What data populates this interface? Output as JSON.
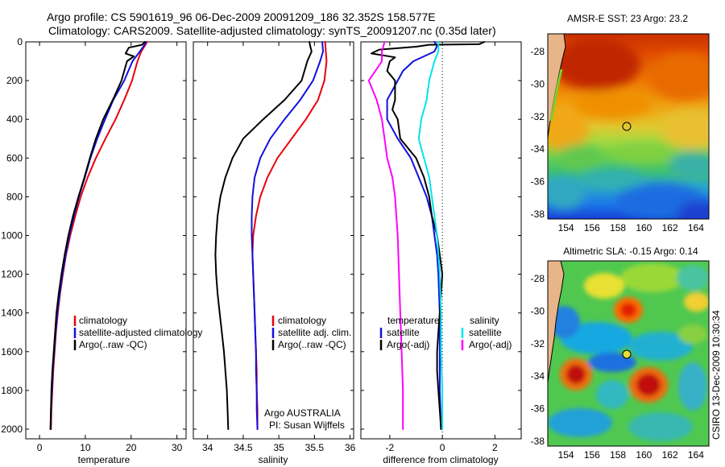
{
  "figure": {
    "title_line1": "Argo profile: CS 5901619_96 06-Dec-2009 20091209_186 32.352S 158.577E",
    "title_line2": "Climatology: CARS2009. Satellite-adjusted climatology: synTS_20091207.nc (0.35d later)",
    "stamp": "CSIRO 13-Dec-2009 10:30:34"
  },
  "colors": {
    "climatology": "#e8000b",
    "satellite": "#1010e0",
    "argo": "#000000",
    "cyan": "#00e5ee",
    "magenta": "#ff00ff",
    "land": "#e8b48a",
    "coast": "#000000",
    "coast_green": "#7fcf2a"
  },
  "panels_text": {
    "credit_line1": "Argo AUSTRALIA",
    "credit_line2": "PI: Susan Wijffels",
    "legend_temp_header": "temperature",
    "legend_sal_header": "salinity"
  },
  "chart_data": [
    {
      "type": "line",
      "name": "temperature-panel",
      "xlabel": "temperature",
      "ylabel": "",
      "xlim": [
        -3,
        32
      ],
      "ylim": [
        2050,
        0
      ],
      "y_reversed": true,
      "xticks": [
        0,
        10,
        20,
        30
      ],
      "yticks": [
        0,
        200,
        400,
        600,
        800,
        1000,
        1200,
        1400,
        1600,
        1800,
        2000
      ],
      "legend": [
        "climatology",
        "satellite-adjusted climatology",
        "Argo(..raw -QC)"
      ],
      "series": [
        {
          "name": "climatology",
          "color_key": "climatology",
          "points": [
            [
              23.5,
              0
            ],
            [
              23.0,
              20
            ],
            [
              22.2,
              50
            ],
            [
              21.4,
              100
            ],
            [
              20.2,
              200
            ],
            [
              18.5,
              300
            ],
            [
              16.6,
              400
            ],
            [
              14.4,
              500
            ],
            [
              12.3,
              600
            ],
            [
              10.5,
              700
            ],
            [
              9.0,
              800
            ],
            [
              7.8,
              900
            ],
            [
              6.7,
              1000
            ],
            [
              5.8,
              1100
            ],
            [
              5.1,
              1200
            ],
            [
              4.5,
              1300
            ],
            [
              4.0,
              1400
            ],
            [
              3.6,
              1500
            ],
            [
              3.3,
              1600
            ],
            [
              3.0,
              1700
            ],
            [
              2.8,
              1800
            ],
            [
              2.6,
              1900
            ],
            [
              2.5,
              2000
            ]
          ]
        },
        {
          "name": "satellite-adjusted climatology",
          "color_key": "satellite",
          "points": [
            [
              23.2,
              0
            ],
            [
              22.8,
              20
            ],
            [
              21.9,
              50
            ],
            [
              20.3,
              100
            ],
            [
              18.5,
              200
            ],
            [
              16.1,
              300
            ],
            [
              14.3,
              400
            ],
            [
              12.6,
              500
            ],
            [
              11.1,
              600
            ],
            [
              9.9,
              700
            ],
            [
              8.6,
              800
            ],
            [
              7.5,
              900
            ],
            [
              6.5,
              1000
            ],
            [
              5.7,
              1100
            ],
            [
              5.0,
              1200
            ],
            [
              4.4,
              1300
            ],
            [
              3.9,
              1400
            ],
            [
              3.5,
              1500
            ],
            [
              3.2,
              1600
            ],
            [
              2.9,
              1700
            ],
            [
              2.7,
              1800
            ],
            [
              2.5,
              1900
            ],
            [
              2.4,
              2000
            ]
          ]
        },
        {
          "name": "Argo(..raw -QC)",
          "color_key": "argo",
          "points": [
            [
              23.0,
              0
            ],
            [
              22.4,
              15
            ],
            [
              19.5,
              30
            ],
            [
              18.8,
              60
            ],
            [
              20.6,
              75
            ],
            [
              19.1,
              100
            ],
            [
              18.5,
              150
            ],
            [
              17.9,
              200
            ],
            [
              16.0,
              300
            ],
            [
              13.9,
              400
            ],
            [
              12.3,
              500
            ],
            [
              11.0,
              600
            ],
            [
              9.8,
              700
            ],
            [
              8.5,
              800
            ],
            [
              7.3,
              900
            ],
            [
              6.3,
              1000
            ],
            [
              5.5,
              1100
            ],
            [
              4.8,
              1200
            ],
            [
              4.2,
              1300
            ],
            [
              3.7,
              1400
            ],
            [
              3.4,
              1500
            ],
            [
              3.1,
              1600
            ],
            [
              2.8,
              1700
            ],
            [
              2.6,
              1800
            ],
            [
              2.5,
              1900
            ],
            [
              2.4,
              2000
            ]
          ]
        }
      ]
    },
    {
      "type": "line",
      "name": "salinity-panel",
      "xlabel": "salinity",
      "ylabel": "",
      "xlim": [
        33.8,
        36.05
      ],
      "ylim": [
        2050,
        0
      ],
      "y_reversed": true,
      "xticks": [
        34,
        34.5,
        35,
        35.5,
        36
      ],
      "legend": [
        "climatology",
        "satellite adj. clim.",
        "Argo(..raw -QC)"
      ],
      "series": [
        {
          "name": "climatology",
          "color_key": "climatology",
          "points": [
            [
              35.65,
              0
            ],
            [
              35.66,
              50
            ],
            [
              35.67,
              100
            ],
            [
              35.64,
              200
            ],
            [
              35.55,
              300
            ],
            [
              35.38,
              400
            ],
            [
              35.18,
              500
            ],
            [
              34.98,
              600
            ],
            [
              34.84,
              700
            ],
            [
              34.74,
              800
            ],
            [
              34.68,
              900
            ],
            [
              34.64,
              1000
            ],
            [
              34.63,
              1100
            ],
            [
              34.64,
              1200
            ],
            [
              34.65,
              1300
            ],
            [
              34.66,
              1400
            ],
            [
              34.67,
              1500
            ],
            [
              34.68,
              1600
            ],
            [
              34.69,
              1700
            ],
            [
              34.69,
              1800
            ],
            [
              34.7,
              1900
            ],
            [
              34.7,
              2000
            ]
          ]
        },
        {
          "name": "satellite adj. clim.",
          "color_key": "satellite",
          "points": [
            [
              35.61,
              0
            ],
            [
              35.62,
              50
            ],
            [
              35.58,
              100
            ],
            [
              35.48,
              200
            ],
            [
              35.3,
              300
            ],
            [
              35.08,
              400
            ],
            [
              34.88,
              500
            ],
            [
              34.74,
              600
            ],
            [
              34.66,
              700
            ],
            [
              34.63,
              800
            ],
            [
              34.62,
              900
            ],
            [
              34.62,
              1000
            ],
            [
              34.63,
              1100
            ],
            [
              34.64,
              1200
            ],
            [
              34.65,
              1300
            ],
            [
              34.66,
              1400
            ],
            [
              34.67,
              1500
            ],
            [
              34.68,
              1600
            ],
            [
              34.68,
              1700
            ],
            [
              34.69,
              1800
            ],
            [
              34.69,
              1900
            ],
            [
              34.7,
              2000
            ]
          ]
        },
        {
          "name": "Argo(..raw -QC)",
          "color_key": "argo",
          "points": [
            [
              35.43,
              0
            ],
            [
              35.44,
              20
            ],
            [
              35.46,
              50
            ],
            [
              35.4,
              100
            ],
            [
              35.32,
              200
            ],
            [
              35.08,
              300
            ],
            [
              34.78,
              400
            ],
            [
              34.5,
              500
            ],
            [
              34.35,
              600
            ],
            [
              34.25,
              700
            ],
            [
              34.18,
              800
            ],
            [
              34.14,
              900
            ],
            [
              34.12,
              1000
            ],
            [
              34.11,
              1100
            ],
            [
              34.12,
              1200
            ],
            [
              34.14,
              1300
            ],
            [
              34.17,
              1400
            ],
            [
              34.2,
              1500
            ],
            [
              34.23,
              1600
            ],
            [
              34.25,
              1700
            ],
            [
              34.27,
              1800
            ],
            [
              34.28,
              1900
            ],
            [
              34.29,
              2000
            ]
          ]
        }
      ]
    },
    {
      "type": "line",
      "name": "difference-panel",
      "xlabel": "difference from climatology",
      "ylabel": "",
      "xlim": [
        -3.1,
        3.0
      ],
      "ylim": [
        2050,
        0
      ],
      "y_reversed": true,
      "xticks": [
        -2,
        0,
        2
      ],
      "zero_line": 0,
      "legend_temperature": [
        "satellite",
        "Argo(-adj)"
      ],
      "legend_salinity": [
        "satellite",
        "Argo(-adj)"
      ],
      "series": [
        {
          "name": "temperature satellite",
          "color_key": "satellite",
          "points": [
            [
              -0.3,
              0
            ],
            [
              -0.2,
              20
            ],
            [
              -0.3,
              50
            ],
            [
              -1.1,
              100
            ],
            [
              -1.5,
              150
            ],
            [
              -1.7,
              200
            ],
            [
              -2.1,
              300
            ],
            [
              -2.1,
              400
            ],
            [
              -1.7,
              500
            ],
            [
              -1.2,
              600
            ],
            [
              -0.9,
              700
            ],
            [
              -0.6,
              800
            ],
            [
              -0.4,
              900
            ],
            [
              -0.3,
              1000
            ],
            [
              -0.2,
              1100
            ],
            [
              -0.15,
              1200
            ],
            [
              -0.1,
              1400
            ],
            [
              -0.1,
              1600
            ],
            [
              -0.1,
              1800
            ],
            [
              -0.05,
              2000
            ]
          ]
        },
        {
          "name": "temperature Argo(-adj)",
          "color_key": "argo",
          "points": [
            [
              1.6,
              0
            ],
            [
              1.4,
              12
            ],
            [
              -0.5,
              15
            ],
            [
              -1.0,
              25
            ],
            [
              -2.4,
              40
            ],
            [
              -2.7,
              60
            ],
            [
              -1.8,
              80
            ],
            [
              -2.0,
              100
            ],
            [
              -2.1,
              150
            ],
            [
              -1.8,
              200
            ],
            [
              -1.8,
              300
            ],
            [
              -1.9,
              350
            ],
            [
              -1.7,
              400
            ],
            [
              -1.6,
              500
            ],
            [
              -1.0,
              600
            ],
            [
              -0.7,
              700
            ],
            [
              -0.5,
              800
            ],
            [
              -0.4,
              900
            ],
            [
              -0.2,
              1000
            ],
            [
              -0.1,
              1100
            ],
            [
              0.0,
              1200
            ],
            [
              -0.05,
              1300
            ],
            [
              -0.1,
              1400
            ],
            [
              -0.15,
              1500
            ],
            [
              -0.2,
              1600
            ],
            [
              -0.2,
              1700
            ],
            [
              -0.15,
              1800
            ],
            [
              -0.1,
              1900
            ],
            [
              -0.05,
              2000
            ]
          ]
        },
        {
          "name": "salinity satellite",
          "color_key": "cyan",
          "points": [
            [
              -0.15,
              0
            ],
            [
              -0.15,
              50
            ],
            [
              -0.3,
              100
            ],
            [
              -0.5,
              200
            ],
            [
              -0.6,
              300
            ],
            [
              -0.8,
              400
            ],
            [
              -0.9,
              500
            ],
            [
              -0.7,
              600
            ],
            [
              -0.5,
              700
            ],
            [
              -0.4,
              800
            ],
            [
              -0.3,
              900
            ],
            [
              -0.2,
              1000
            ],
            [
              -0.15,
              1100
            ],
            [
              -0.1,
              1200
            ],
            [
              -0.05,
              1400
            ],
            [
              -0.05,
              1600
            ],
            [
              0.0,
              1800
            ],
            [
              0.0,
              2000
            ]
          ]
        },
        {
          "name": "salinity Argo(-adj)",
          "color_key": "magenta",
          "points": [
            [
              -2.2,
              0
            ],
            [
              -2.3,
              50
            ],
            [
              -2.3,
              100
            ],
            [
              -2.8,
              200
            ],
            [
              -2.5,
              300
            ],
            [
              -2.3,
              400
            ],
            [
              -2.2,
              500
            ],
            [
              -2.1,
              600
            ],
            [
              -1.9,
              700
            ],
            [
              -1.8,
              800
            ],
            [
              -1.75,
              900
            ],
            [
              -1.7,
              1000
            ],
            [
              -1.65,
              1200
            ],
            [
              -1.6,
              1400
            ],
            [
              -1.55,
              1600
            ],
            [
              -1.5,
              1800
            ],
            [
              -1.5,
              2000
            ]
          ]
        }
      ]
    },
    {
      "type": "heatmap",
      "name": "sst-map",
      "title": "AMSR-E SST: 23 Argo: 23.2",
      "xlim": [
        152.6,
        165.0
      ],
      "ylim": [
        -38.3,
        -26.9
      ],
      "xticks": [
        154,
        156,
        158,
        160,
        162,
        164
      ],
      "yticks": [
        -28,
        -30,
        -32,
        -34,
        -36,
        -38
      ],
      "float_position": [
        158.577,
        -32.352
      ]
    },
    {
      "type": "heatmap",
      "name": "sla-map",
      "title": "Altimetric SLA: -0.15 Argo: 0.14",
      "xlim": [
        152.6,
        165.0
      ],
      "ylim": [
        -38.3,
        -26.9
      ],
      "xticks": [
        154,
        156,
        158,
        160,
        162,
        164
      ],
      "yticks": [
        -28,
        -30,
        -32,
        -34,
        -36,
        -38
      ],
      "float_position": [
        158.577,
        -32.352
      ]
    }
  ]
}
